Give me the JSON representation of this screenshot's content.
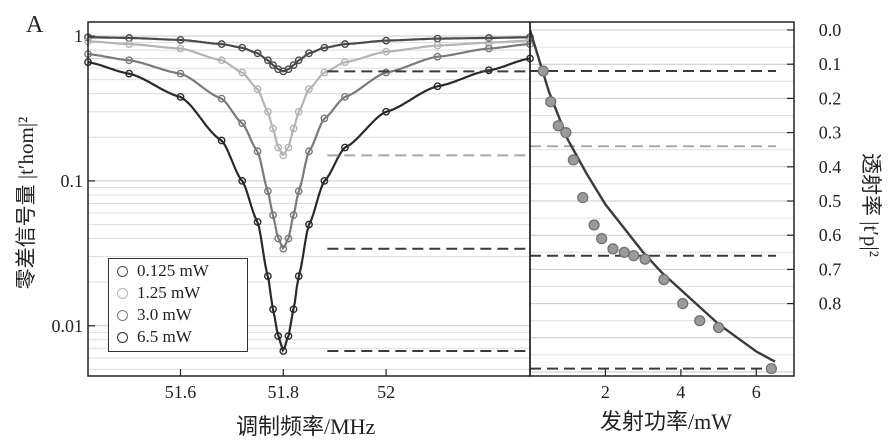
{
  "panel_label": "A",
  "colors": {
    "s0125": "#4a4a4a",
    "s125": "#b4b4b4",
    "s30": "#7a7a7a",
    "s65": "#2a2a2a",
    "dash_light": "#a8a8a8",
    "dash_dark": "#3a3a3a",
    "fit_right": "#3b3b3b"
  },
  "chart_data": [
    {
      "type": "scatter",
      "panel": "left",
      "xlabel": "调制频率/MHz",
      "ylabel": "零差信号量 |t′hom|²",
      "yscale": "log",
      "xlim": [
        51.42,
        52.28
      ],
      "ylim": [
        0.0045,
        1.25
      ],
      "xticks": [
        51.6,
        51.8,
        52.0
      ],
      "xtick_labels": [
        "51.6",
        "51.8",
        "52"
      ],
      "yticks": [
        1,
        0.1,
        0.01
      ],
      "ytick_labels": [
        "1",
        "0.1",
        "0.01"
      ],
      "grid": true,
      "legend_position": "lower-left",
      "series": [
        {
          "name": "0.125 mW",
          "x": [
            51.42,
            51.5,
            51.6,
            51.68,
            51.72,
            51.75,
            51.77,
            51.78,
            51.79,
            51.8,
            51.81,
            51.82,
            51.83,
            51.85,
            51.88,
            51.92,
            52.0,
            52.1,
            52.2,
            52.28
          ],
          "y": [
            0.98,
            0.97,
            0.94,
            0.88,
            0.83,
            0.76,
            0.68,
            0.63,
            0.59,
            0.57,
            0.59,
            0.63,
            0.68,
            0.76,
            0.83,
            0.88,
            0.93,
            0.96,
            0.97,
            0.98
          ]
        },
        {
          "name": "1.25 mW",
          "x": [
            51.42,
            51.5,
            51.6,
            51.68,
            51.72,
            51.75,
            51.77,
            51.78,
            51.79,
            51.8,
            51.81,
            51.82,
            51.83,
            51.85,
            51.88,
            51.92,
            52.0,
            52.1,
            52.2,
            52.28
          ],
          "y": [
            0.92,
            0.88,
            0.82,
            0.68,
            0.56,
            0.43,
            0.3,
            0.23,
            0.17,
            0.15,
            0.17,
            0.23,
            0.3,
            0.43,
            0.56,
            0.66,
            0.78,
            0.86,
            0.9,
            0.93
          ]
        },
        {
          "name": "3.0 mW",
          "x": [
            51.42,
            51.5,
            51.6,
            51.68,
            51.72,
            51.75,
            51.77,
            51.78,
            51.79,
            51.8,
            51.81,
            51.82,
            51.83,
            51.85,
            51.88,
            51.92,
            52.0,
            52.1,
            52.2,
            52.28
          ],
          "y": [
            0.75,
            0.68,
            0.55,
            0.37,
            0.25,
            0.16,
            0.085,
            0.058,
            0.04,
            0.034,
            0.04,
            0.058,
            0.085,
            0.16,
            0.27,
            0.38,
            0.56,
            0.72,
            0.82,
            0.88
          ]
        },
        {
          "name": "6.5 mW",
          "x": [
            51.42,
            51.5,
            51.6,
            51.68,
            51.72,
            51.75,
            51.77,
            51.78,
            51.79,
            51.8,
            51.81,
            51.82,
            51.83,
            51.85,
            51.88,
            51.92,
            52.0,
            52.1,
            52.2,
            52.28
          ],
          "y": [
            0.66,
            0.55,
            0.38,
            0.19,
            0.1,
            0.052,
            0.022,
            0.013,
            0.0085,
            0.0067,
            0.0085,
            0.013,
            0.022,
            0.05,
            0.1,
            0.17,
            0.3,
            0.45,
            0.58,
            0.7
          ]
        }
      ],
      "dashed_levels": [
        {
          "y": 0.57,
          "x_start": 51.8,
          "color_key": "dash_dark"
        },
        {
          "y": 0.15,
          "x_start": 51.8,
          "color_key": "dash_light"
        },
        {
          "y": 0.034,
          "x_start": 51.8,
          "color_key": "dash_dark"
        },
        {
          "y": 0.0067,
          "x_start": 51.8,
          "color_key": "dash_dark"
        }
      ]
    },
    {
      "type": "scatter",
      "panel": "right",
      "xlabel": "发射功率/mW",
      "ylabel": "透射率 |t′p|²",
      "xlim": [
        0,
        7.0
      ],
      "ylim_inverted": [
        0.0,
        1.0
      ],
      "xticks": [
        2,
        4,
        6
      ],
      "xtick_labels": [
        "2",
        "4",
        "6"
      ],
      "yticks": [
        0.0,
        0.1,
        0.2,
        0.3,
        0.4,
        0.5,
        0.6,
        0.7,
        0.8
      ],
      "ytick_labels": [
        "0.0",
        "0.1",
        "0.2",
        "0.3",
        "0.4",
        "0.5",
        "0.6",
        "0.7",
        "0.8"
      ],
      "grid": true,
      "points": {
        "x": [
          0.35,
          0.55,
          0.75,
          0.95,
          1.15,
          1.4,
          1.7,
          1.9,
          2.2,
          2.5,
          2.75,
          3.05,
          3.55,
          4.05,
          4.5,
          5.0,
          6.4
        ],
        "y": [
          0.12,
          0.21,
          0.28,
          0.3,
          0.38,
          0.49,
          0.57,
          0.61,
          0.64,
          0.65,
          0.66,
          0.67,
          0.73,
          0.8,
          0.85,
          0.87,
          0.99
        ]
      },
      "fit_curve": {
        "x": [
          0,
          0.5,
          1.0,
          1.5,
          2.0,
          2.5,
          3.0,
          3.5,
          4.0,
          4.5,
          5.0,
          5.5,
          6.0,
          6.5
        ],
        "y": [
          0.0,
          0.18,
          0.32,
          0.42,
          0.51,
          0.58,
          0.65,
          0.71,
          0.76,
          0.81,
          0.86,
          0.9,
          0.94,
          0.97
        ]
      },
      "dashed_levels": [
        {
          "y": 0.12,
          "color_key": "dash_dark"
        },
        {
          "y": 0.34,
          "color_key": "dash_light"
        },
        {
          "y": 0.66,
          "color_key": "dash_dark"
        },
        {
          "y": 0.99,
          "color_key": "dash_dark"
        }
      ]
    }
  ]
}
